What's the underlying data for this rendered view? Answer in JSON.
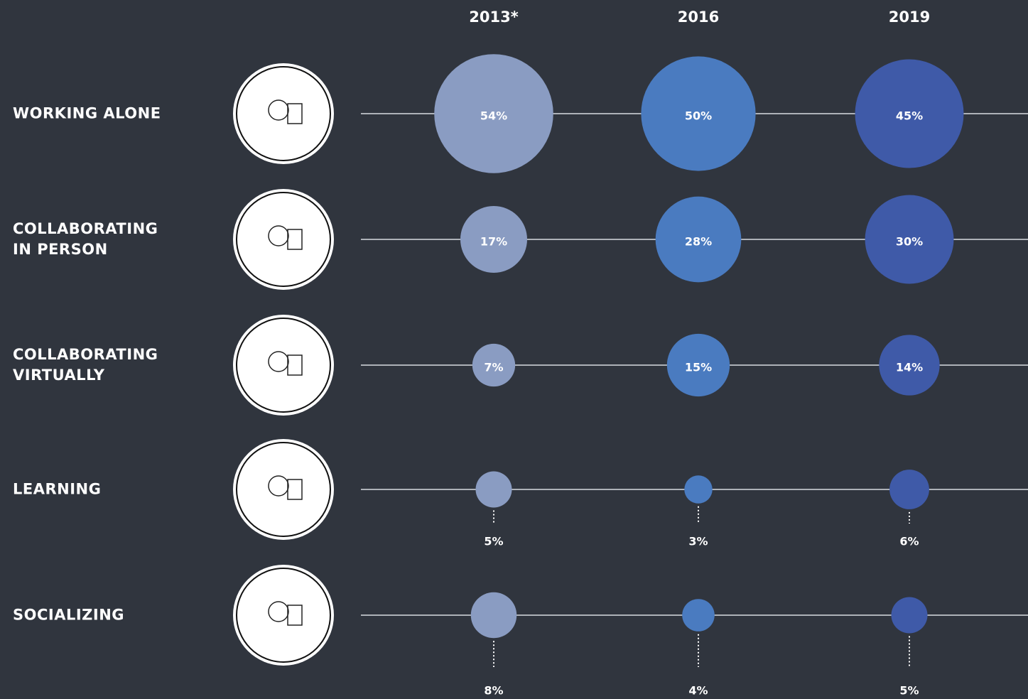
{
  "chart_data": {
    "type": "bubble",
    "categories": [
      "WORKING ALONE",
      "COLLABORATING IN PERSON",
      "COLLABORATING VIRTUALLY",
      "LEARNING",
      "SOCIALIZING"
    ],
    "series": [
      {
        "name": "2013*",
        "color": "#8a9cc2",
        "values": [
          54,
          17,
          7,
          5,
          8
        ],
        "value_labels": [
          "54%",
          "17%",
          "7%",
          "5%",
          "8%"
        ]
      },
      {
        "name": "2016",
        "color": "#4a7bc0",
        "values": [
          50,
          28,
          15,
          3,
          4
        ],
        "value_labels": [
          "50%",
          "28%",
          "15%",
          "3%",
          "4%"
        ]
      },
      {
        "name": "2019",
        "color": "#3f5aa8",
        "values": [
          45,
          30,
          14,
          6,
          5
        ],
        "value_labels": [
          "45%",
          "30%",
          "14%",
          "6%",
          "5%"
        ]
      }
    ]
  }
}
